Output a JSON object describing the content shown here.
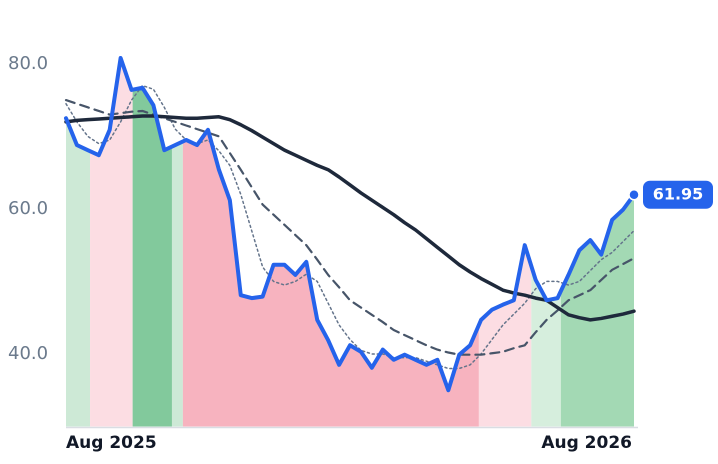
{
  "chart_data": {
    "type": "line",
    "x": [
      0,
      1,
      2,
      3,
      4,
      5,
      6,
      7,
      8,
      9,
      10,
      11,
      12,
      13,
      14,
      15,
      16,
      17,
      18,
      19,
      20,
      21,
      22,
      23,
      24,
      25,
      26,
      27,
      28,
      29,
      30,
      31,
      32,
      33,
      34,
      35,
      36,
      37,
      38,
      39,
      40,
      41,
      42,
      43,
      44,
      45,
      46,
      47,
      48,
      49,
      50,
      51,
      52
    ],
    "xlim": [
      0,
      52
    ],
    "xticks": [
      {
        "value": 0,
        "label": "Aug 2025"
      },
      {
        "value": 52,
        "label": "Aug 2026"
      }
    ],
    "ylim": [
      30,
      88.8
    ],
    "yticks": [
      {
        "value": 40,
        "label": "40.0"
      },
      {
        "value": 60,
        "label": "60.0"
      },
      {
        "value": 80,
        "label": "80.0"
      }
    ],
    "regions": [
      {
        "start": 0,
        "end": 2.2,
        "color": "#cde9d6"
      },
      {
        "start": 2.2,
        "end": 6.1,
        "color": "#fcdde3"
      },
      {
        "start": 6.1,
        "end": 9.7,
        "color": "#82c99c"
      },
      {
        "start": 9.7,
        "end": 10.7,
        "color": "#cde9d6"
      },
      {
        "start": 10.7,
        "end": 37.8,
        "color": "#f7b3bf"
      },
      {
        "start": 37.8,
        "end": 42.6,
        "color": "#fcdde3"
      },
      {
        "start": 42.6,
        "end": 45.3,
        "color": "#d6eedd"
      },
      {
        "start": 45.3,
        "end": 52,
        "color": "#a3d9b4"
      }
    ],
    "series": [
      {
        "color": "#2563eb",
        "style": "solid",
        "width": 4,
        "values": [
          72.5,
          68.8,
          68.1,
          67.4,
          70.9,
          80.8,
          76.4,
          76.7,
          74.3,
          68.1,
          68.8,
          69.5,
          68.8,
          70.9,
          65.4,
          61.2,
          48.1,
          47.7,
          47.9,
          52.3,
          52.3,
          50.9,
          52.7,
          44.7,
          41.9,
          38.5,
          41.2,
          40.3,
          38.1,
          40.6,
          39.2,
          39.9,
          39.2,
          38.5,
          39.2,
          35.0,
          39.9,
          41.2,
          44.7,
          46.1,
          46.8,
          47.4,
          55.0,
          50.2,
          47.4,
          47.7,
          50.9,
          54.3,
          55.7,
          53.7,
          58.5,
          59.9,
          61.95
        ]
      },
      {
        "color": "#1e293b",
        "style": "solid",
        "width": 3.5,
        "values": [
          72.0,
          72.2,
          72.3,
          72.4,
          72.5,
          72.6,
          72.7,
          72.8,
          72.8,
          72.7,
          72.6,
          72.5,
          72.5,
          72.6,
          72.7,
          72.3,
          71.6,
          70.8,
          69.9,
          69.0,
          68.1,
          67.4,
          66.7,
          66.0,
          65.4,
          64.4,
          63.3,
          62.2,
          61.2,
          60.2,
          59.2,
          58.1,
          57.1,
          55.9,
          54.7,
          53.5,
          52.3,
          51.3,
          50.4,
          49.6,
          48.8,
          48.4,
          48.1,
          47.7,
          47.4,
          46.4,
          45.4,
          45.0,
          44.7,
          44.9,
          45.2,
          45.5,
          45.9
        ]
      },
      {
        "color": "#475569",
        "style": "dashed",
        "width": 2.2,
        "values": [
          75.0,
          74.5,
          74.0,
          73.5,
          73.0,
          73.2,
          73.4,
          73.5,
          73.0,
          72.5,
          72.0,
          71.5,
          71.0,
          70.5,
          70.0,
          67.7,
          65.4,
          63.0,
          60.6,
          59.2,
          57.8,
          56.4,
          55.0,
          53.0,
          50.9,
          49.2,
          47.4,
          46.4,
          45.4,
          44.4,
          43.3,
          42.6,
          41.9,
          41.2,
          40.6,
          40.2,
          39.9,
          39.9,
          39.9,
          40.1,
          40.3,
          40.8,
          41.2,
          43.0,
          44.7,
          46.0,
          47.4,
          48.1,
          48.8,
          50.2,
          51.6,
          52.4,
          53.2
        ]
      },
      {
        "color": "#64748b",
        "style": "dotted",
        "width": 1.5,
        "values": [
          74.5,
          72,
          70,
          69,
          69.5,
          72,
          75,
          77,
          76.5,
          74,
          71,
          69.5,
          69,
          69.5,
          68,
          66,
          62,
          57,
          52,
          50,
          49.5,
          50,
          51,
          50,
          47,
          44,
          42,
          40.5,
          40,
          40,
          39.5,
          39.5,
          39.5,
          39,
          38.5,
          38,
          38,
          38.5,
          40,
          42,
          44,
          45.5,
          47,
          49,
          50,
          50,
          49.5,
          50,
          51.5,
          53,
          54,
          55.5,
          57
        ]
      }
    ]
  }
}
